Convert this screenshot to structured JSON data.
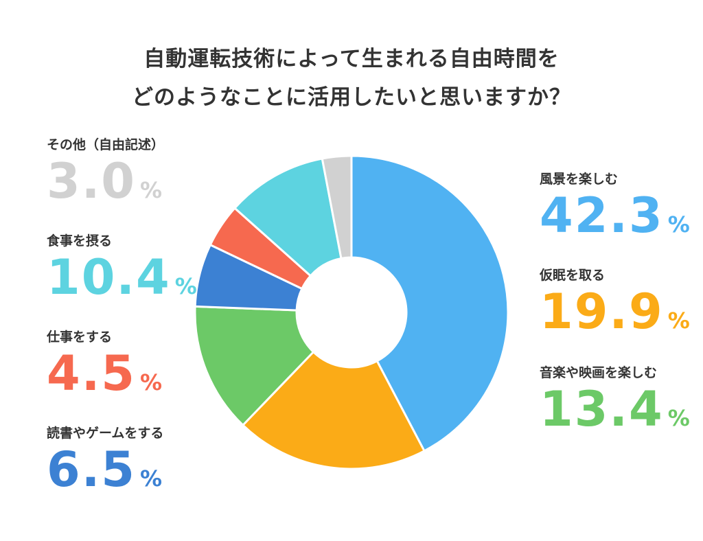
{
  "title": {
    "line1": "自動運転技術によって生まれる自由時間を",
    "line2": "どのようなことに活用したいと思いますか？"
  },
  "unit": "%",
  "colors": {
    "scenery": "#50b2f2",
    "nap": "#fbab17",
    "music_movie": "#6cc967",
    "reading_game": "#3c81d3",
    "work": "#f6694f",
    "meal": "#5dd3e0",
    "other": "#d1d1d1"
  },
  "chart_data": {
    "type": "pie",
    "style": "donut",
    "title": "自動運転技術によって生まれる自由時間をどのようなことに活用したいと思いますか？",
    "categories": [
      "風景を楽しむ",
      "仮眠を取る",
      "音楽や映画を楽しむ",
      "読書やゲームをする",
      "仕事をする",
      "食事を摂る",
      "その他（自由記述）"
    ],
    "values": [
      42.3,
      19.9,
      13.4,
      6.5,
      4.5,
      10.4,
      3.0
    ],
    "value_labels": [
      "42.3",
      "19.9",
      "13.4",
      "6.5",
      "4.5",
      "10.4",
      "3.0"
    ],
    "colors": [
      "#50b2f2",
      "#fbab17",
      "#6cc967",
      "#3c81d3",
      "#f6694f",
      "#5dd3e0",
      "#d1d1d1"
    ],
    "direction": "clockwise from top",
    "legend": "labels beside chart"
  }
}
